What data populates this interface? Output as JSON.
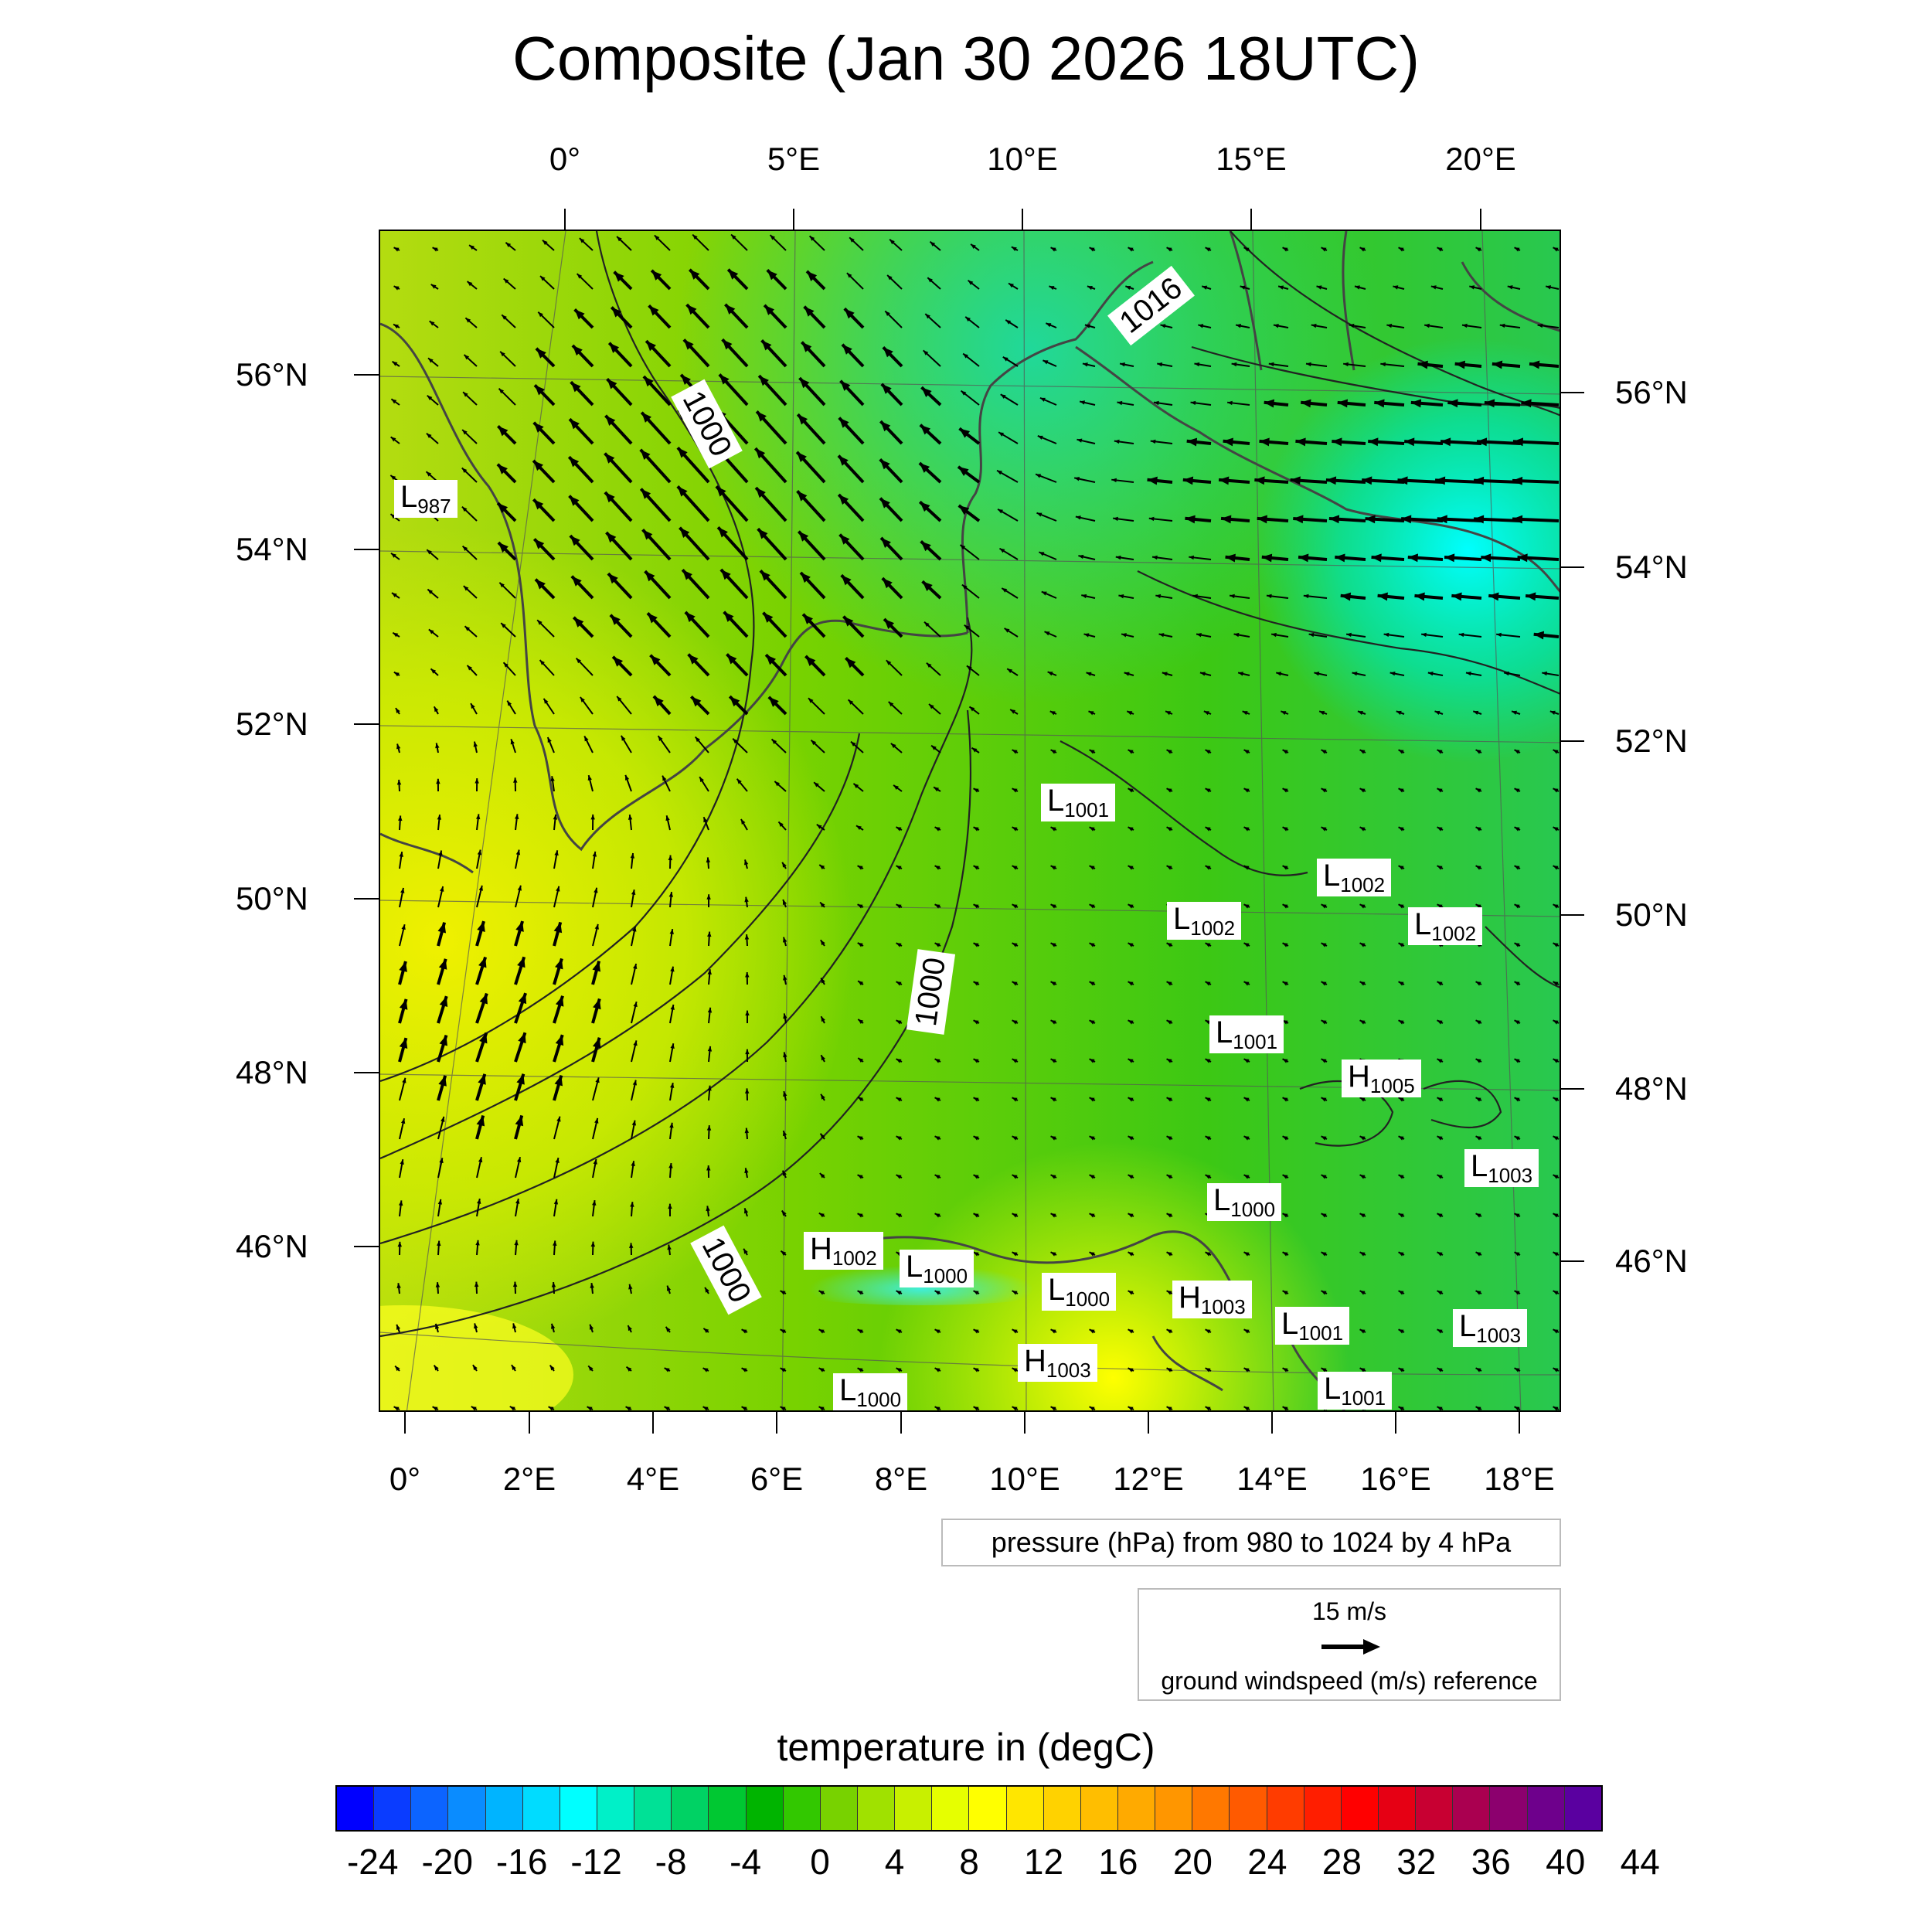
{
  "title": "Composite (Jan 30 2026 18UTC)",
  "top_lon_labels": [
    "0°",
    "5°E",
    "10°E",
    "15°E",
    "20°E"
  ],
  "bottom_lon_labels": [
    "0°",
    "2°E",
    "4°E",
    "6°E",
    "8°E",
    "10°E",
    "12°E",
    "14°E",
    "16°E",
    "18°E"
  ],
  "left_lat_labels": [
    "56°N",
    "54°N",
    "52°N",
    "50°N",
    "48°N",
    "46°N"
  ],
  "right_lat_labels": [
    "56°N",
    "54°N",
    "52°N",
    "50°N",
    "48°N",
    "46°N"
  ],
  "isobar_labels": [
    "1000",
    "1000",
    "1000",
    "1016"
  ],
  "pressure_centers": [
    {
      "type": "L",
      "value": "987"
    },
    {
      "type": "L",
      "value": "1001"
    },
    {
      "type": "L",
      "value": "1002"
    },
    {
      "type": "L",
      "value": "1002"
    },
    {
      "type": "L",
      "value": "1002"
    },
    {
      "type": "L",
      "value": "1001"
    },
    {
      "type": "H",
      "value": "1005"
    },
    {
      "type": "L",
      "value": "1003"
    },
    {
      "type": "L",
      "value": "1000"
    },
    {
      "type": "H",
      "value": "1002"
    },
    {
      "type": "L",
      "value": "1000"
    },
    {
      "type": "L",
      "value": "1000"
    },
    {
      "type": "H",
      "value": "1003"
    },
    {
      "type": "L",
      "value": "1001"
    },
    {
      "type": "L",
      "value": "1003"
    },
    {
      "type": "H",
      "value": "1003"
    },
    {
      "type": "L",
      "value": "1000"
    },
    {
      "type": "L",
      "value": "1001"
    }
  ],
  "pressure_note": "pressure (hPa) from 980 to 1024 by 4 hPa",
  "wind_reference": {
    "speed_label": "15 m/s",
    "caption": "ground windspeed (m/s) reference"
  },
  "colorbar": {
    "title": "temperature in (degC)",
    "tick_labels": [
      "-24",
      "-20",
      "-16",
      "-12",
      "-8",
      "-4",
      "0",
      "4",
      "8",
      "12",
      "16",
      "20",
      "24",
      "28",
      "32",
      "36",
      "40",
      "44"
    ],
    "colors": [
      "#0000ff",
      "#0a3cff",
      "#0c64ff",
      "#0a8cff",
      "#00b4ff",
      "#00dcff",
      "#00ffff",
      "#00f0c8",
      "#00e196",
      "#00d264",
      "#00c832",
      "#00b400",
      "#32c800",
      "#78d200",
      "#a0e100",
      "#c8f000",
      "#e6ff00",
      "#ffff00",
      "#ffe600",
      "#ffd200",
      "#ffbe00",
      "#ffaa00",
      "#ff9600",
      "#ff7800",
      "#ff5a00",
      "#ff3c00",
      "#ff1e00",
      "#ff0000",
      "#e60014",
      "#c80032",
      "#aa0050",
      "#8c006e",
      "#6e008c",
      "#5a00a0"
    ]
  }
}
